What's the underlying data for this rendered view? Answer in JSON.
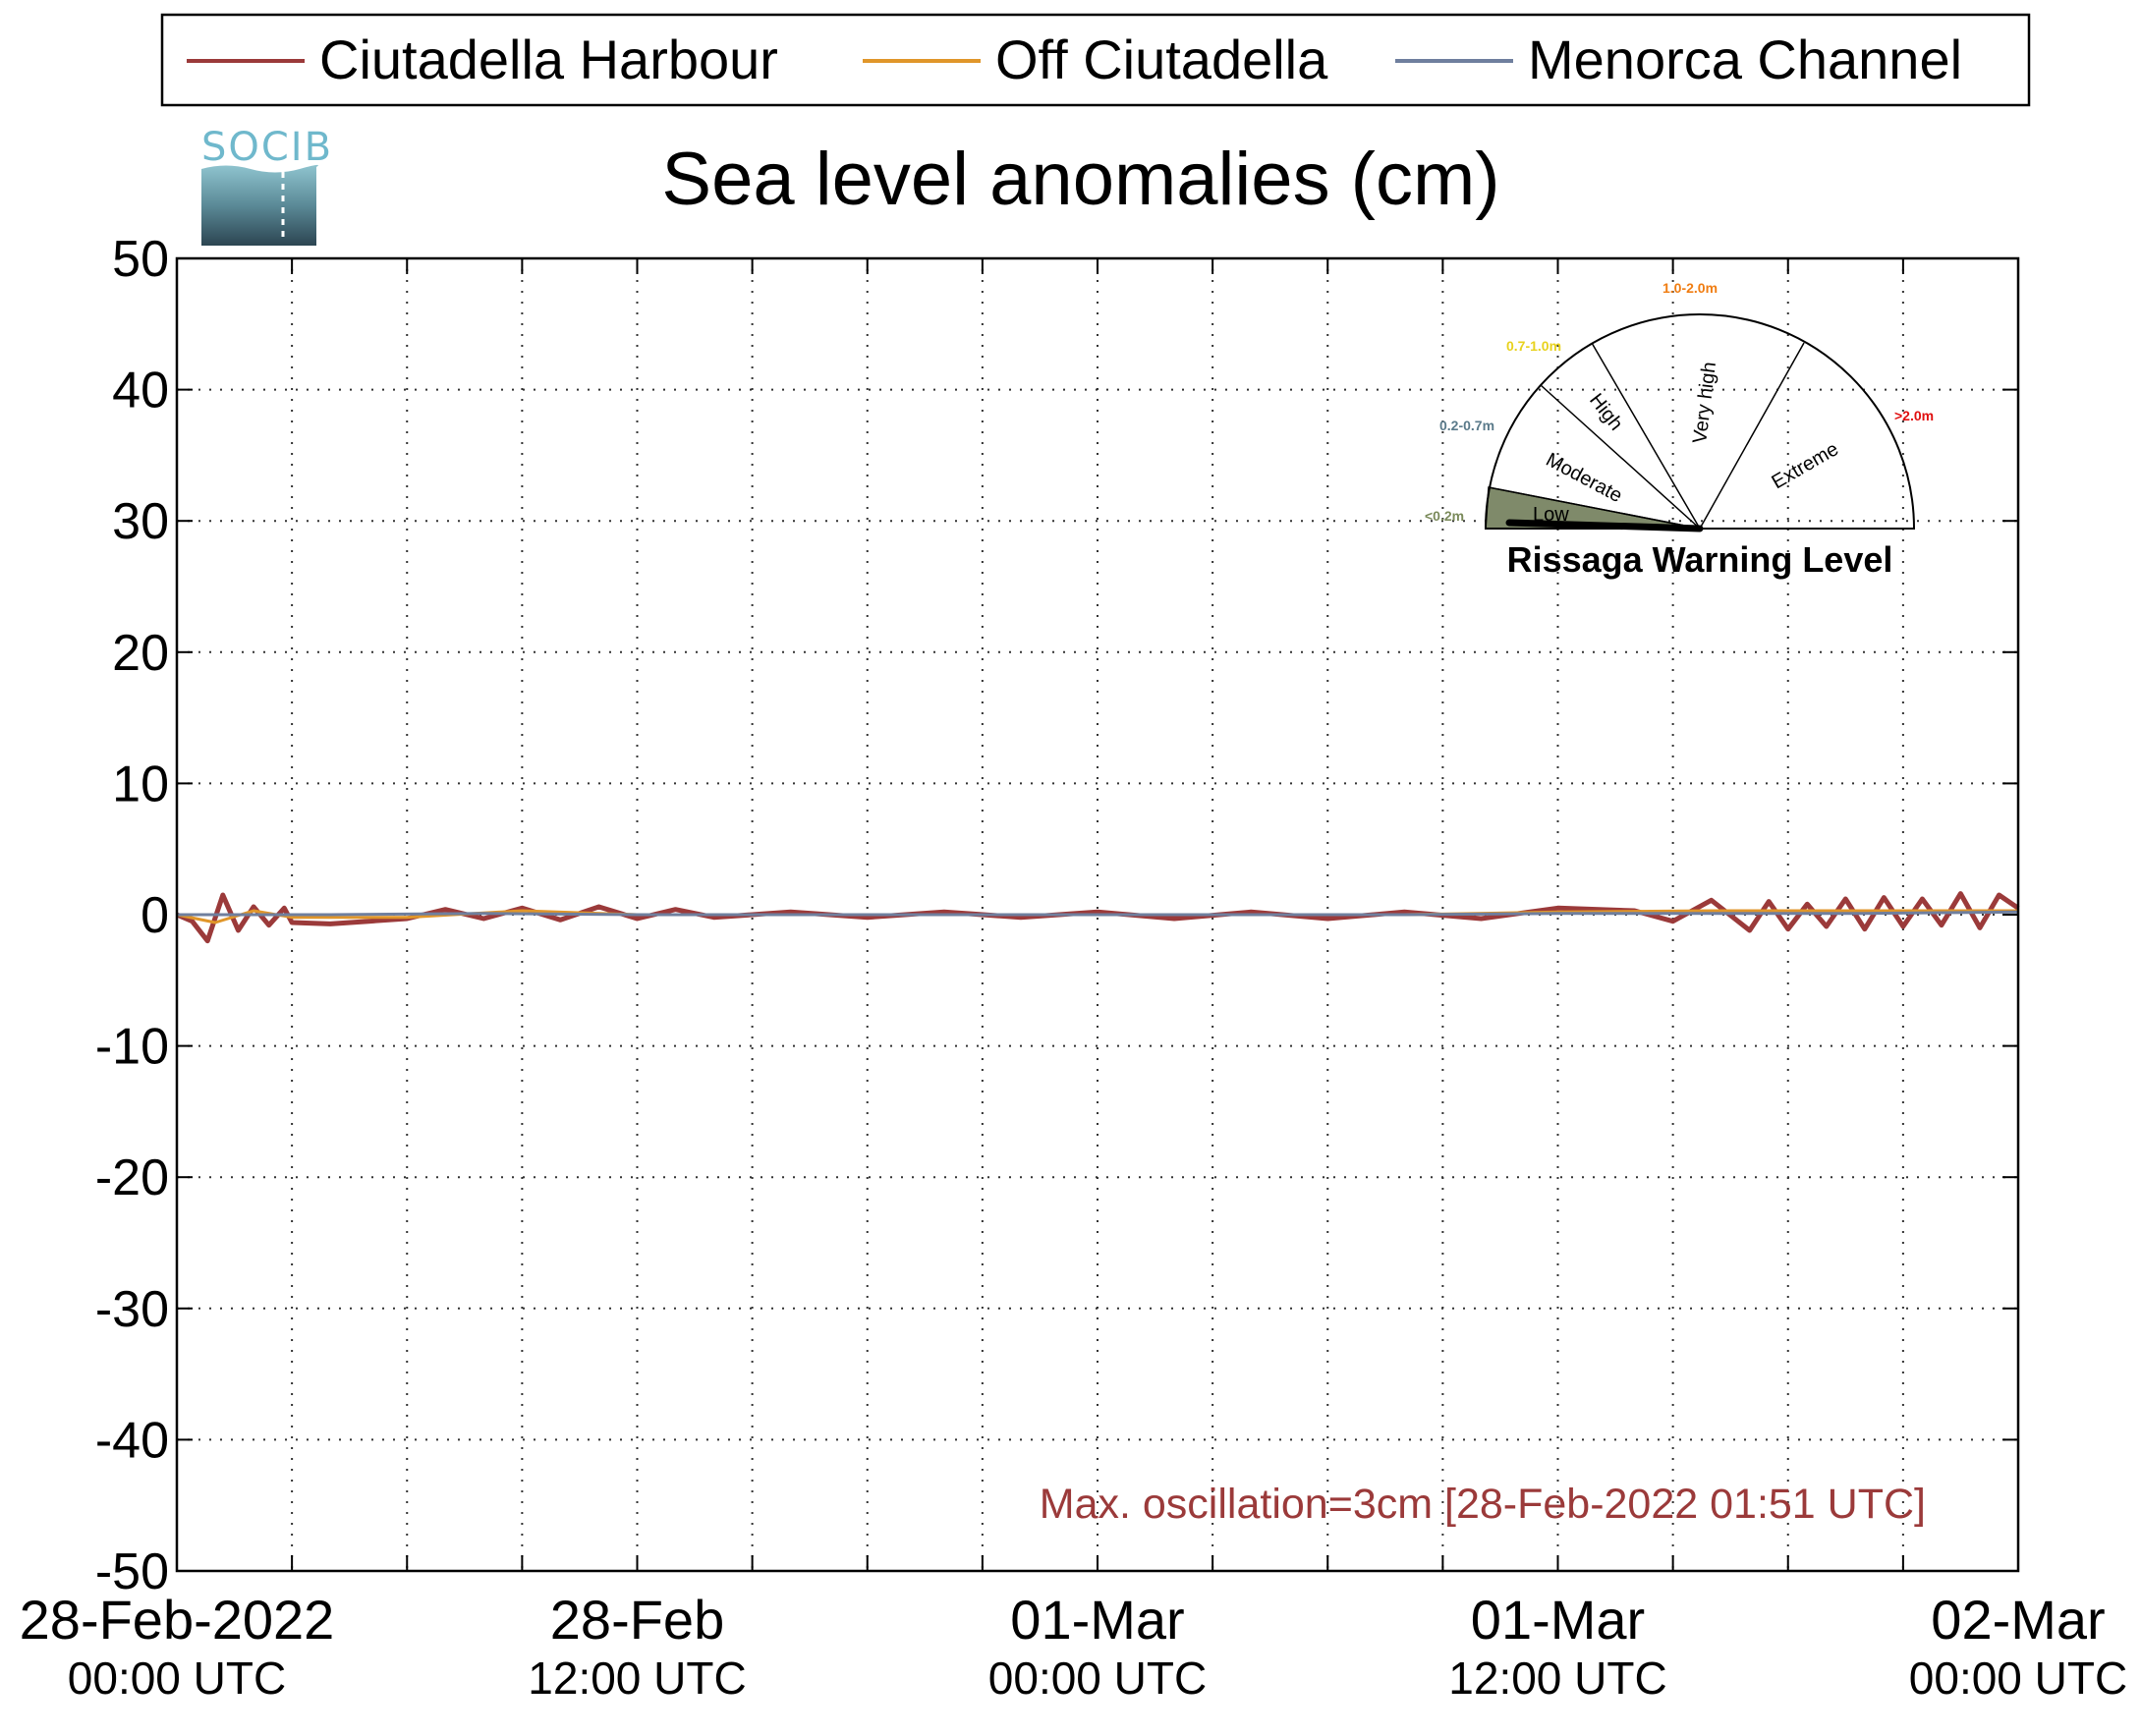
{
  "legend": {
    "items": [
      {
        "label": "Ciutadella Harbour",
        "color": "#9b3a3a"
      },
      {
        "label": "Off Ciutadella",
        "color": "#e0962a"
      },
      {
        "label": "Menorca Channel",
        "color": "#6f7f9e"
      }
    ]
  },
  "logo": {
    "text": "SOCIB"
  },
  "chart_data": {
    "type": "line",
    "title": "Sea level anomalies (cm)",
    "ylim": [
      -50,
      50
    ],
    "yticks": [
      50,
      40,
      30,
      20,
      10,
      0,
      -10,
      -20,
      -30,
      -40,
      -50
    ],
    "ytick_labels": [
      "50",
      "40",
      "30",
      "20",
      "10",
      "0",
      "-10",
      "-20",
      "-30",
      "-40",
      "-50"
    ],
    "xlim_hours": [
      0,
      48
    ],
    "grid": true,
    "x_tick_labels": [
      {
        "hour": 0,
        "date": "28-Feb-2022",
        "time": "00:00 UTC"
      },
      {
        "hour": 12,
        "date": "28-Feb",
        "time": "12:00 UTC"
      },
      {
        "hour": 24,
        "date": "01-Mar",
        "time": "00:00 UTC"
      },
      {
        "hour": 36,
        "date": "01-Mar",
        "time": "12:00 UTC"
      },
      {
        "hour": 48,
        "date": "02-Mar",
        "time": "00:00 UTC"
      }
    ],
    "series": [
      {
        "name": "Ciutadella Harbour",
        "color": "#9b3a3a",
        "x": [
          0,
          0.4,
          0.8,
          1.2,
          1.6,
          2.0,
          2.4,
          2.8,
          3,
          4,
          5,
          6,
          7,
          8,
          9,
          10,
          11,
          12,
          13,
          14,
          16,
          18,
          20,
          22,
          24,
          26,
          28,
          30,
          32,
          34,
          36,
          38,
          39,
          40,
          41,
          41.5,
          42,
          42.5,
          43,
          43.5,
          44,
          44.5,
          45,
          45.5,
          46,
          46.5,
          47,
          47.5,
          48
        ],
        "y": [
          0,
          -0.5,
          -2.0,
          1.5,
          -1.2,
          0.6,
          -0.8,
          0.5,
          -0.6,
          -0.7,
          -0.5,
          -0.3,
          0.4,
          -0.3,
          0.5,
          -0.4,
          0.6,
          -0.3,
          0.4,
          -0.2,
          0.2,
          -0.2,
          0.2,
          -0.2,
          0.2,
          -0.3,
          0.2,
          -0.3,
          0.2,
          -0.3,
          0.5,
          0.3,
          -0.5,
          1.1,
          -1.2,
          1.0,
          -1.1,
          0.8,
          -0.9,
          1.2,
          -1.1,
          1.3,
          -0.9,
          1.2,
          -0.8,
          1.6,
          -1.0,
          1.5,
          0.5
        ]
      },
      {
        "name": "Off Ciutadella",
        "color": "#e0962a",
        "x": [
          0,
          1,
          2,
          3,
          6,
          9,
          12,
          16,
          20,
          24,
          28,
          32,
          36,
          40,
          44,
          48
        ],
        "y": [
          0,
          -0.6,
          0.3,
          -0.2,
          -0.2,
          0.3,
          0,
          0,
          0,
          0,
          0,
          0,
          0.2,
          0.3,
          0.3,
          0.3
        ]
      },
      {
        "name": "Menorca Channel",
        "color": "#6f7f9e",
        "x": [
          0,
          4,
          8,
          12,
          16,
          20,
          24,
          28,
          32,
          36,
          40,
          44,
          48
        ],
        "y": [
          0,
          0,
          0.1,
          0,
          0,
          0,
          0,
          0,
          0,
          0.1,
          0.1,
          0.1,
          0.2
        ]
      }
    ],
    "annotation": {
      "text": "Max. oscillation=3cm [28-Feb-2022 01:51 UTC]",
      "color": "#9b3a3a"
    }
  },
  "gauge": {
    "title": "Rissaga Warning Level",
    "current_level": "Low",
    "sectors": [
      {
        "label": "Low",
        "range": "<0.2m",
        "range_color": "#7a8a5a",
        "fill": "#7f8a6a"
      },
      {
        "label": "Moderate",
        "range": "0.2-0.7m",
        "range_color": "#5a7a8a",
        "fill": "#ffffff"
      },
      {
        "label": "High",
        "range": "0.7-1.0m",
        "range_color": "#e8d21e",
        "fill": "#ffffff"
      },
      {
        "label": "Very high",
        "range": "1.0-2.0m",
        "range_color": "#f07d12",
        "fill": "#ffffff"
      },
      {
        "label": "Extreme",
        "range": ">2.0m",
        "range_color": "#e01010",
        "fill": "#ffffff"
      }
    ]
  }
}
